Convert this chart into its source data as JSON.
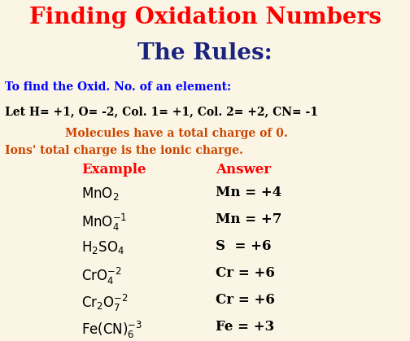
{
  "bg_color": "#faf5e4",
  "title1": "Finding Oxidation Numbers",
  "title1_color": "#ff0000",
  "title2": "The Rules:",
  "title2_color": "#1a237e",
  "subtitle": "To find the Oxid. No. of an element:",
  "subtitle_color": "#0000ff",
  "rule_line": "Let H= +1, O= -2, Col. 1= +1, Col. 2= +2, CN= -1",
  "rule_line_color": "#000000",
  "orange_line1": "Molecules have a total charge of 0.",
  "orange_line2": "Ions' total charge is the ionic charge.",
  "orange_color": "#cc4400",
  "col_header_example": "Example",
  "col_header_answer": "Answer",
  "header_color": "#ff0000",
  "table_color": "#000000",
  "formulas_math": [
    "$\\mathrm{MnO_2}$",
    "$\\mathrm{MnO_4^{-1}}$",
    "$\\mathrm{H_2SO_4}$",
    "$\\mathrm{CrO_4^{-2}}$",
    "$\\mathrm{Cr_2O_7^{-2}}$",
    "$\\mathrm{Fe(CN)_6^{-3}}$"
  ],
  "answers": [
    "Mn = +4",
    "Mn = +7",
    "S  = +6",
    "Cr = +6",
    "Cr = +6",
    "Fe = +3"
  ],
  "title1_fontsize": 20,
  "title2_fontsize": 20,
  "subtitle_fontsize": 10,
  "rule_fontsize": 10,
  "orange_fontsize": 10,
  "header_fontsize": 12,
  "table_fontsize": 12
}
